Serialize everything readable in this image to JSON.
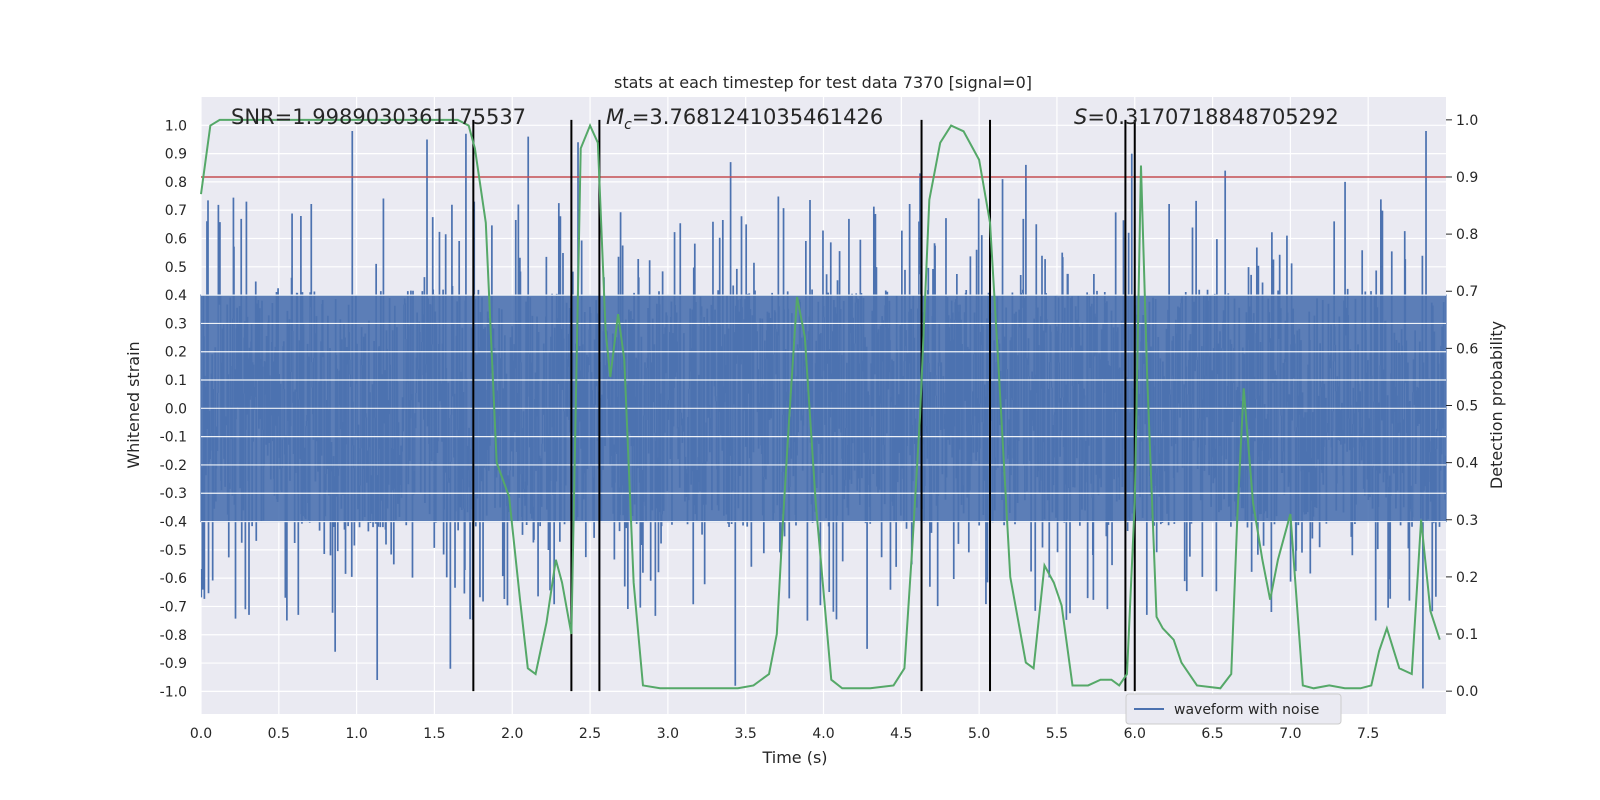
{
  "chart_data": {
    "type": "line",
    "title": "stats at each timestep for test data 7370 [signal=0]",
    "xlabel": "Time (s)",
    "ylabel_left": "Whitened strain",
    "ylabel_right": "Detection probability",
    "xlim": [
      0.0,
      8.0
    ],
    "ylim_left": [
      -1.08,
      1.1
    ],
    "ylim_right": [
      -0.04,
      1.04
    ],
    "x_ticks": [
      "0.0",
      "0.5",
      "1.0",
      "1.5",
      "2.0",
      "2.5",
      "3.0",
      "3.5",
      "4.0",
      "4.5",
      "5.0",
      "5.5",
      "6.0",
      "6.5",
      "7.0",
      "7.5"
    ],
    "y_ticks_left": [
      "1.0",
      "0.9",
      "0.8",
      "0.7",
      "0.6",
      "0.5",
      "0.4",
      "0.3",
      "0.2",
      "0.1",
      "0.0",
      "-0.1",
      "-0.2",
      "-0.3",
      "-0.4",
      "-0.5",
      "-0.6",
      "-0.7",
      "-0.8",
      "-0.9",
      "-1.0"
    ],
    "y_ticks_right": [
      "1.0",
      "0.9",
      "0.8",
      "0.7",
      "0.6",
      "0.5",
      "0.4",
      "0.3",
      "0.2",
      "0.1",
      "0.0"
    ],
    "annotations": {
      "snr": "SNR=1.9989030361175537",
      "mc_symbol": "M",
      "mc_sub": "c",
      "mc_value": "=3.7681241035461426",
      "s_symbol": "S",
      "s_value": "=0.3170718848705292"
    },
    "threshold": {
      "value": 0.9,
      "axis": "right",
      "color": "#c44e52"
    },
    "vertical_markers": [
      1.75,
      2.38,
      2.56,
      4.63,
      5.07,
      5.94,
      6.0
    ],
    "legend": {
      "label": "waveform with noise",
      "position": "lower-right"
    },
    "series": [
      {
        "name": "waveform with noise",
        "axis": "left",
        "color": "#4c72b0",
        "description": "dense whitened-strain noise, bulk within about ±0.4, spikes up to ~0.9 and down to ~-1.0",
        "peaks_high": [
          [
            0.97,
            0.98
          ],
          [
            1.45,
            0.95
          ],
          [
            1.7,
            0.97
          ],
          [
            2.1,
            0.96
          ],
          [
            2.42,
            0.94
          ],
          [
            3.4,
            0.87
          ],
          [
            4.62,
            0.83
          ],
          [
            5.15,
            0.81
          ],
          [
            5.3,
            0.86
          ],
          [
            5.98,
            0.9
          ],
          [
            6.58,
            0.84
          ],
          [
            7.35,
            0.8
          ],
          [
            7.87,
            0.98
          ]
        ],
        "peaks_low": [
          [
            0.86,
            -0.86
          ],
          [
            1.13,
            -0.96
          ],
          [
            1.6,
            -0.92
          ],
          [
            3.43,
            -0.98
          ],
          [
            4.28,
            -0.85
          ],
          [
            7.85,
            -0.99
          ]
        ]
      },
      {
        "name": "detection probability",
        "axis": "right",
        "color": "#55a868",
        "x": [
          0.0,
          0.06,
          0.12,
          0.25,
          0.5,
          0.75,
          1.0,
          1.25,
          1.5,
          1.65,
          1.72,
          1.76,
          1.83,
          1.9,
          1.98,
          2.05,
          2.1,
          2.15,
          2.22,
          2.28,
          2.32,
          2.38,
          2.44,
          2.5,
          2.55,
          2.6,
          2.63,
          2.68,
          2.72,
          2.78,
          2.84,
          2.95,
          3.1,
          3.3,
          3.45,
          3.55,
          3.65,
          3.7,
          3.74,
          3.78,
          3.83,
          3.88,
          3.95,
          4.05,
          4.12,
          4.3,
          4.45,
          4.52,
          4.57,
          4.62,
          4.68,
          4.75,
          4.82,
          4.9,
          5.0,
          5.07,
          5.12,
          5.2,
          5.3,
          5.35,
          5.42,
          5.48,
          5.53,
          5.6,
          5.7,
          5.78,
          5.85,
          5.9,
          5.95,
          6.0,
          6.04,
          6.08,
          6.14,
          6.18,
          6.25,
          6.3,
          6.4,
          6.55,
          6.62,
          6.66,
          6.7,
          6.76,
          6.82,
          6.87,
          6.92,
          7.0,
          7.08,
          7.15,
          7.25,
          7.35,
          7.45,
          7.52,
          7.57,
          7.62,
          7.7,
          7.78,
          7.84,
          7.9,
          7.96
        ],
        "y": [
          0.87,
          0.99,
          1.0,
          1.0,
          1.0,
          1.0,
          1.0,
          1.0,
          1.0,
          1.0,
          0.99,
          0.95,
          0.82,
          0.4,
          0.34,
          0.16,
          0.04,
          0.03,
          0.12,
          0.23,
          0.19,
          0.1,
          0.95,
          0.99,
          0.96,
          0.63,
          0.55,
          0.66,
          0.58,
          0.19,
          0.01,
          0.005,
          0.005,
          0.005,
          0.005,
          0.01,
          0.03,
          0.1,
          0.3,
          0.48,
          0.69,
          0.62,
          0.33,
          0.02,
          0.005,
          0.005,
          0.01,
          0.04,
          0.25,
          0.48,
          0.86,
          0.96,
          0.99,
          0.98,
          0.93,
          0.82,
          0.59,
          0.2,
          0.05,
          0.04,
          0.22,
          0.19,
          0.15,
          0.01,
          0.01,
          0.02,
          0.02,
          0.01,
          0.03,
          0.33,
          0.92,
          0.55,
          0.13,
          0.11,
          0.09,
          0.05,
          0.01,
          0.005,
          0.03,
          0.31,
          0.53,
          0.33,
          0.23,
          0.16,
          0.23,
          0.31,
          0.01,
          0.005,
          0.01,
          0.005,
          0.005,
          0.01,
          0.07,
          0.11,
          0.04,
          0.03,
          0.3,
          0.14,
          0.09
        ]
      }
    ]
  }
}
